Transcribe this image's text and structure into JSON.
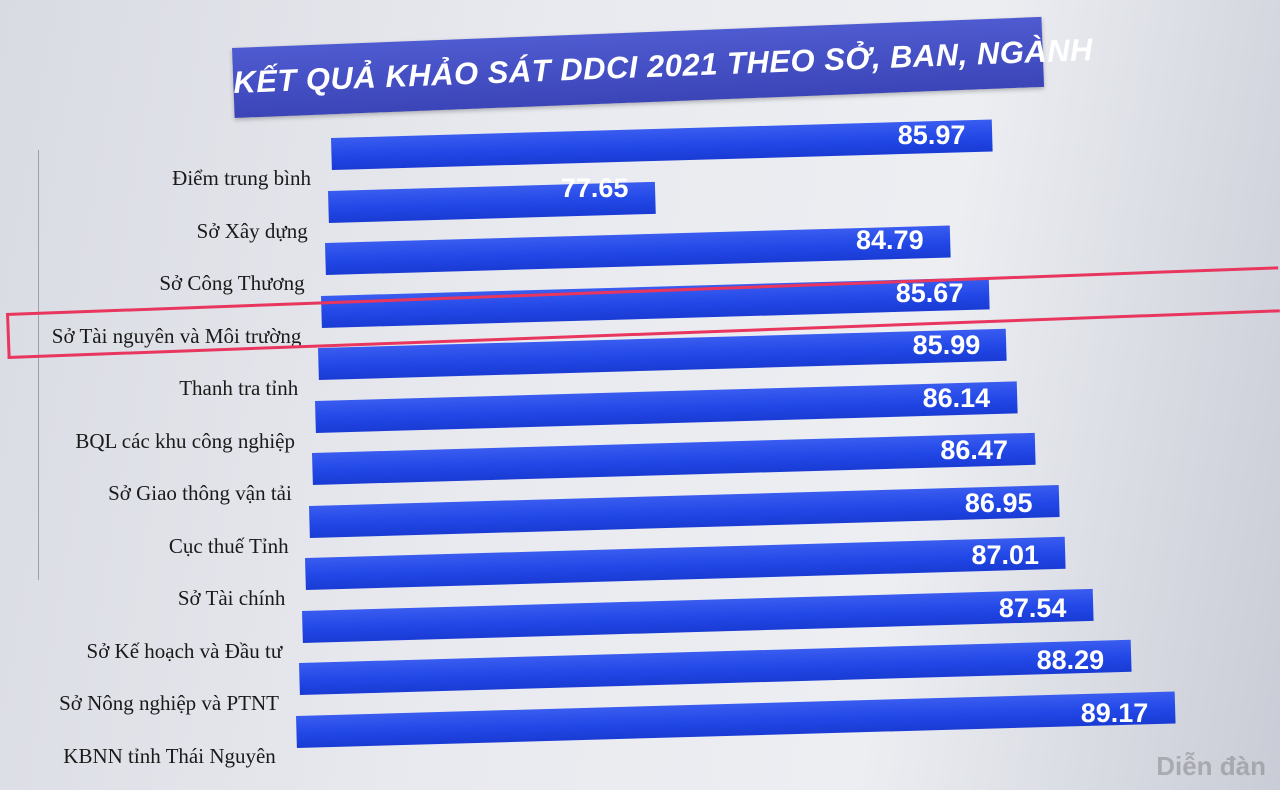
{
  "chart_data": {
    "type": "bar",
    "orientation": "horizontal",
    "title": "KẾT QUẢ KHẢO SÁT DDCI 2021 THEO SỞ, BAN, NGÀNH",
    "categories": [
      "Điểm trung bình",
      "Sở Xây dựng",
      "Sở Công Thương",
      "Sở Tài nguyên và Môi trường",
      "Thanh tra tỉnh",
      "BQL các khu công nghiệp",
      "Sở Giao thông vận tải",
      "Cục thuế Tỉnh",
      "Sở Tài chính",
      "Sở Kế hoạch và Đầu tư",
      "Sở Nông nghiệp và PTNT",
      "KBNN tỉnh Thái Nguyên"
    ],
    "values": [
      85.97,
      77.65,
      84.79,
      85.67,
      85.99,
      86.14,
      86.47,
      86.95,
      87.01,
      87.54,
      88.29,
      89.17
    ],
    "value_labels": [
      "85.97",
      "77.65",
      "84.79",
      "85.67",
      "85.99",
      "86.14",
      "86.47",
      "86.95",
      "87.01",
      "87.54",
      "88.29",
      "89.17"
    ],
    "highlighted_category": "Sở Tài nguyên và Môi trường",
    "colors": {
      "bar": "#2147e6",
      "title_bg": "#3b45b8",
      "highlight": "#e8365e"
    },
    "xlabel": "",
    "ylabel": "",
    "grid": false,
    "legend": "none"
  },
  "watermark": "Diễn đàn"
}
